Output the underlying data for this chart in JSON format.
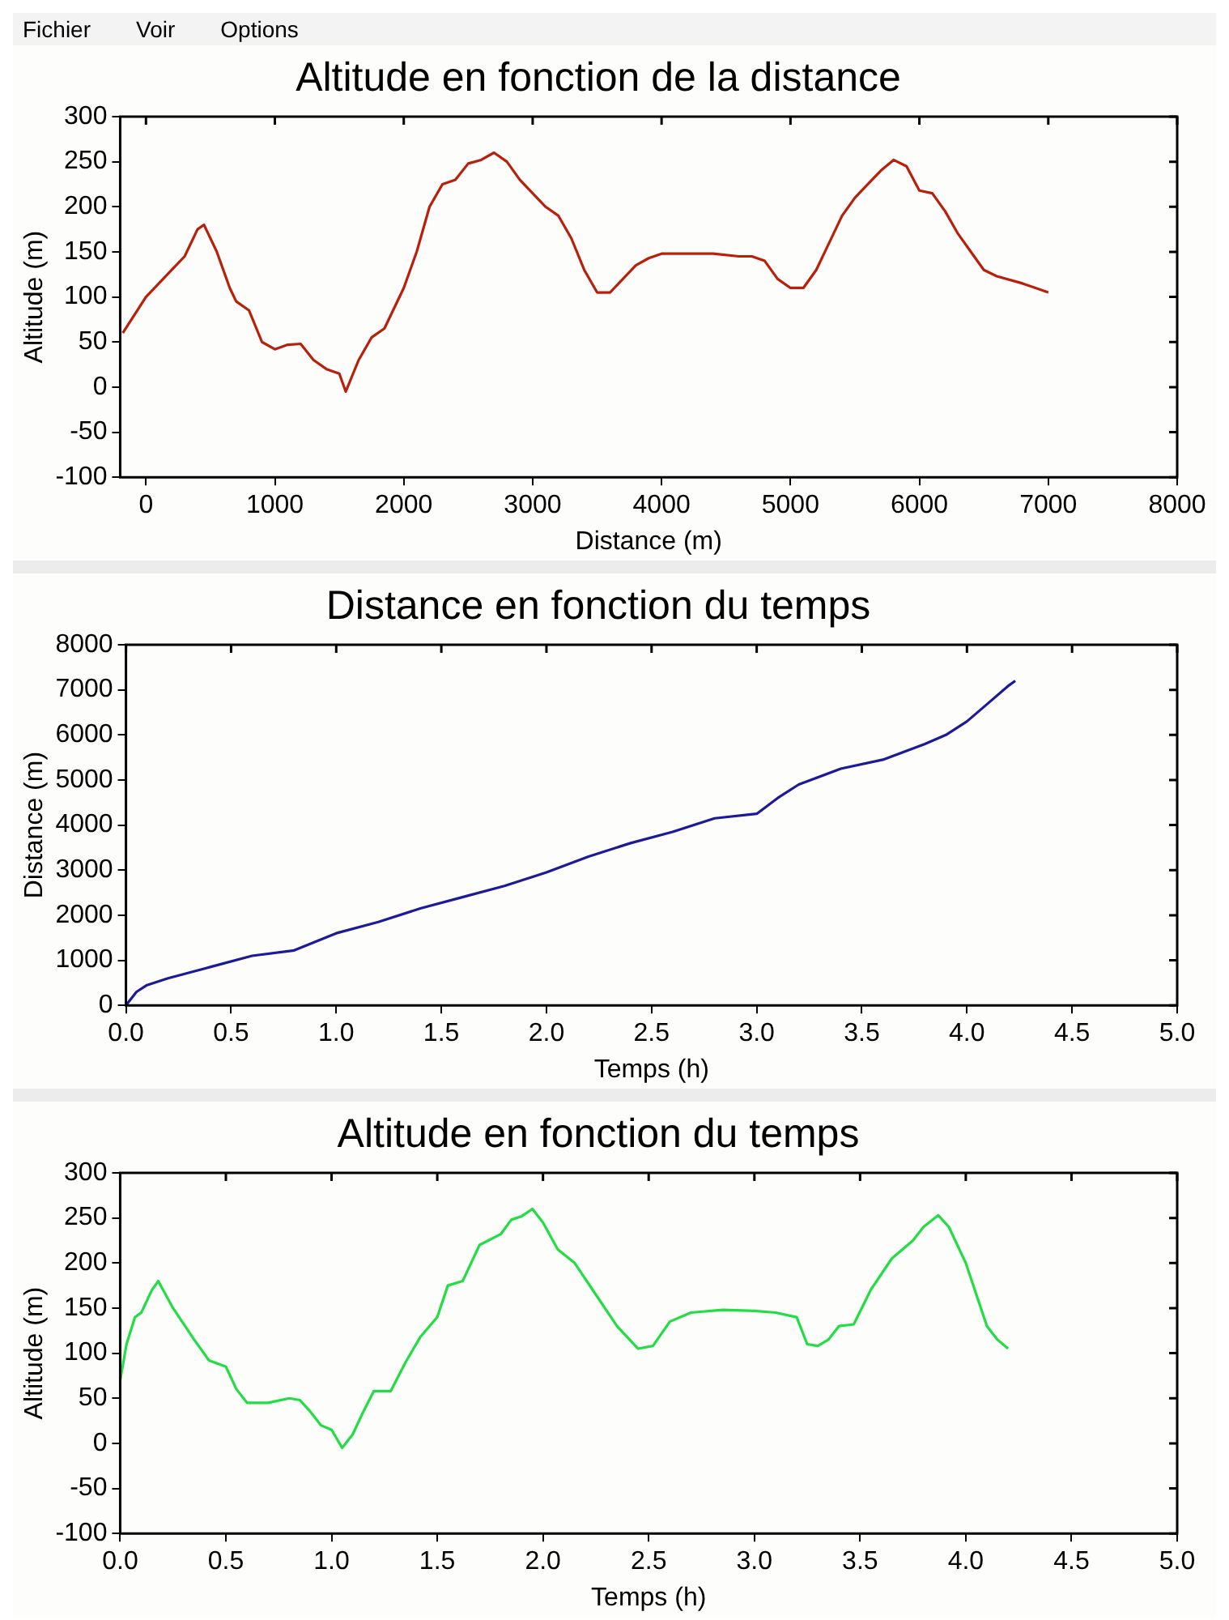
{
  "chart_data": [
    {
      "type": "line",
      "title": "Altitude en fonction de la distance",
      "xlabel": "Distance (m)",
      "ylabel": "Altitude (m)",
      "annotations": [
        "Fichier",
        "Voir",
        "Options"
      ],
      "xlim": [
        -200,
        8000
      ],
      "xticks": [
        0,
        1000,
        2000,
        3000,
        4000,
        5000,
        6000,
        7000,
        8000
      ],
      "ylim": [
        -100,
        300
      ],
      "yticks": [
        -100,
        -50,
        0,
        50,
        100,
        150,
        200,
        250,
        300
      ],
      "grid": false,
      "legend": false,
      "series": [
        {
          "color": "#b8200c",
          "x": [
            -180,
            0,
            200,
            300,
            400,
            450,
            550,
            650,
            700,
            800,
            900,
            1000,
            1100,
            1200,
            1300,
            1400,
            1500,
            1550,
            1650,
            1750,
            1850,
            2000,
            2100,
            2200,
            2300,
            2400,
            2500,
            2600,
            2700,
            2800,
            2900,
            3000,
            3100,
            3200,
            3300,
            3400,
            3500,
            3600,
            3700,
            3800,
            3900,
            4000,
            4200,
            4400,
            4600,
            4700,
            4800,
            4900,
            5000,
            5100,
            5200,
            5300,
            5400,
            5500,
            5600,
            5700,
            5800,
            5900,
            6000,
            6100,
            6200,
            6300,
            6400,
            6500,
            6600,
            6800,
            7000
          ],
          "values": [
            60,
            100,
            130,
            145,
            175,
            180,
            150,
            110,
            95,
            85,
            50,
            42,
            47,
            48,
            30,
            20,
            15,
            -5,
            30,
            55,
            65,
            110,
            150,
            200,
            225,
            230,
            248,
            252,
            260,
            250,
            230,
            215,
            200,
            190,
            165,
            130,
            105,
            105,
            120,
            135,
            143,
            148,
            148,
            148,
            145,
            145,
            140,
            120,
            110,
            110,
            130,
            160,
            190,
            210,
            225,
            240,
            252,
            245,
            218,
            215,
            195,
            170,
            150,
            130,
            123,
            115,
            105
          ]
        }
      ]
    },
    {
      "type": "line",
      "title": "Distance en fonction du temps",
      "xlabel": "Temps (h)",
      "ylabel": "Distance (m)",
      "xlim": [
        0,
        5
      ],
      "xticks": [
        {
          "value": 0,
          "label": "0.0"
        },
        0.5,
        {
          "value": 1,
          "label": "1.0"
        },
        1.5,
        {
          "value": 2,
          "label": "2.0"
        },
        2.5,
        {
          "value": 3,
          "label": "3.0"
        },
        3.5,
        {
          "value": 4,
          "label": "4.0"
        },
        4.5,
        {
          "value": 5,
          "label": "5.0"
        }
      ],
      "ylim": [
        0,
        8000
      ],
      "yticks": [
        0,
        1000,
        2000,
        3000,
        4000,
        5000,
        6000,
        7000,
        8000
      ],
      "grid": false,
      "legend": false,
      "series": [
        {
          "color": "#1c1a9a",
          "x": [
            0,
            0.05,
            0.1,
            0.2,
            0.4,
            0.6,
            0.8,
            1.0,
            1.2,
            1.4,
            1.6,
            1.8,
            2.0,
            2.2,
            2.4,
            2.6,
            2.8,
            3.0,
            3.1,
            3.2,
            3.4,
            3.6,
            3.8,
            3.9,
            4.0,
            4.1,
            4.2,
            4.23
          ],
          "values": [
            0,
            300,
            450,
            600,
            850,
            1100,
            1220,
            1600,
            1850,
            2150,
            2400,
            2650,
            2950,
            3300,
            3600,
            3850,
            4150,
            4250,
            4600,
            4900,
            5250,
            5450,
            5800,
            6000,
            6300,
            6700,
            7100,
            7200
          ]
        }
      ]
    },
    {
      "type": "line",
      "title": "Altitude en fonction du temps",
      "xlabel": "Temps (h)",
      "ylabel": "Altitude (m)",
      "xlim": [
        0,
        5
      ],
      "xticks": [
        {
          "value": 0,
          "label": "0.0"
        },
        0.5,
        {
          "value": 1,
          "label": "1.0"
        },
        1.5,
        {
          "value": 2,
          "label": "2.0"
        },
        2.5,
        {
          "value": 3,
          "label": "3.0"
        },
        3.5,
        {
          "value": 4,
          "label": "4.0"
        },
        4.5,
        {
          "value": 5,
          "label": "5.0"
        }
      ],
      "ylim": [
        -100,
        300
      ],
      "yticks": [
        -100,
        -50,
        0,
        50,
        100,
        150,
        200,
        250,
        300
      ],
      "grid": false,
      "legend": false,
      "series": [
        {
          "color": "#22dd44",
          "x": [
            0,
            0.03,
            0.07,
            0.1,
            0.15,
            0.18,
            0.25,
            0.35,
            0.42,
            0.5,
            0.55,
            0.6,
            0.7,
            0.8,
            0.85,
            0.9,
            0.95,
            1.0,
            1.05,
            1.1,
            1.15,
            1.2,
            1.28,
            1.35,
            1.42,
            1.5,
            1.55,
            1.62,
            1.7,
            1.8,
            1.85,
            1.9,
            1.95,
            2.0,
            2.07,
            2.15,
            2.25,
            2.35,
            2.45,
            2.52,
            2.6,
            2.7,
            2.85,
            3.0,
            3.1,
            3.2,
            3.25,
            3.3,
            3.35,
            3.4,
            3.47,
            3.55,
            3.65,
            3.75,
            3.8,
            3.87,
            3.92,
            4.0,
            4.05,
            4.1,
            4.15,
            4.2
          ],
          "values": [
            70,
            110,
            140,
            145,
            170,
            180,
            150,
            115,
            92,
            85,
            60,
            45,
            45,
            50,
            48,
            35,
            20,
            15,
            -5,
            10,
            35,
            58,
            58,
            90,
            118,
            140,
            175,
            180,
            220,
            232,
            248,
            252,
            260,
            245,
            215,
            200,
            165,
            130,
            105,
            108,
            135,
            145,
            148,
            147,
            145,
            140,
            110,
            108,
            115,
            130,
            132,
            170,
            205,
            225,
            240,
            253,
            240,
            200,
            165,
            130,
            115,
            105
          ]
        }
      ]
    }
  ]
}
